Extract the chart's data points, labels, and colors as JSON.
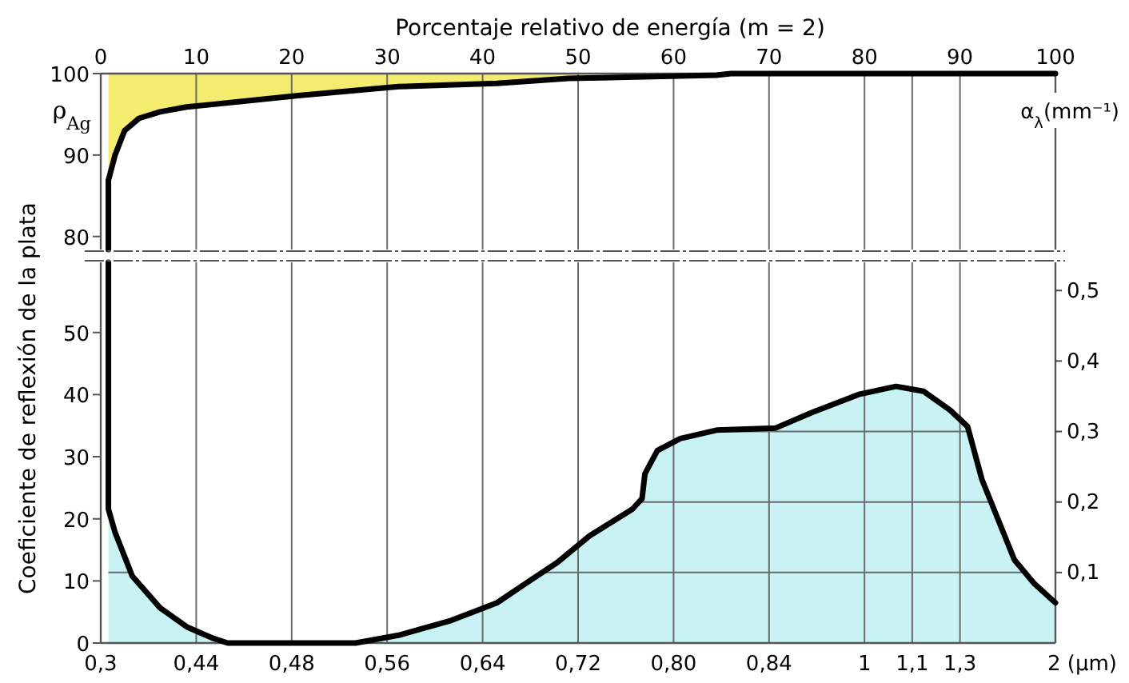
{
  "chart_data": [
    {
      "type": "line",
      "xlabel": "Porcentaje relativo de energía (m = 2)",
      "ylabel": "ρ$_{Ag}$",
      "xlim": [
        0,
        100
      ],
      "xticks": [
        0,
        10,
        20,
        30,
        40,
        50,
        60,
        70,
        80,
        {
          "value": 85,
          "label": null
        },
        90,
        100
      ],
      "ylim": [
        78.4,
        100
      ],
      "yticks": [
        80,
        90,
        100
      ],
      "grid": "x",
      "colors": [
        "#f3ec6e"
      ],
      "series": [
        {
          "color": "#000000",
          "x": [
            0.8,
            0.8,
            1.5,
            2.5,
            4,
            6.2,
            9,
            20.7,
            31.2,
            41.5,
            49,
            64.5,
            66,
            100
          ],
          "values": [
            78.4,
            86.9,
            90,
            93,
            94.5,
            95.3,
            95.9,
            97.3,
            98.4,
            98.8,
            99.4,
            99.8,
            100,
            100
          ],
          "lower": [
            78.4,
            86.9,
            90,
            93,
            94.5,
            95.3,
            95.9,
            97.3,
            98.4,
            98.8,
            99.4,
            99.8,
            100,
            100
          ],
          "upper": [
            100,
            100,
            100,
            100,
            100,
            100,
            100,
            100,
            100,
            100,
            100,
            100,
            100,
            100
          ]
        }
      ]
    },
    {
      "type": "line",
      "ylabel": "Coeficiente de reflexión de la plata",
      "y2label": "α$_{λ}$(mm⁻¹)",
      "xlim": [
        0,
        100
      ],
      "tick_labels": "y",
      "xticks": [
        {
          "value": 0,
          "label": null
        },
        {
          "value": 10,
          "label": null
        },
        {
          "value": 20,
          "label": null
        },
        {
          "value": 30,
          "label": null
        },
        {
          "value": 40,
          "label": null
        },
        {
          "value": 50,
          "label": null
        },
        {
          "value": 60,
          "label": null
        },
        {
          "value": 70,
          "label": null
        },
        {
          "value": 80,
          "label": null
        },
        {
          "value": 85,
          "label": null
        },
        {
          "value": 90,
          "label": null
        },
        {
          "value": 100,
          "label": null
        }
      ],
      "annotations": [
        {
          "text": "0,3",
          "x": 0,
          "y": 0
        },
        {
          "text": "0,44",
          "x": 10,
          "y": 0
        },
        {
          "text": "0,48",
          "x": 20,
          "y": 0
        },
        {
          "text": "0,56",
          "x": 30,
          "y": 0
        },
        {
          "text": "0,64",
          "x": 40,
          "y": 0
        },
        {
          "text": "0,72",
          "x": 50,
          "y": 0
        },
        {
          "text": "0,80",
          "x": 60,
          "y": 0
        },
        {
          "text": "0,84",
          "x": 70,
          "y": 0
        },
        {
          "text": "1",
          "x": 80,
          "y": 0
        },
        {
          "text": "1,1",
          "x": 85,
          "y": 0
        },
        {
          "text": "1,3",
          "x": 90,
          "y": 0
        },
        {
          "text": "2 (µm)",
          "x": 100,
          "y": 0
        }
      ],
      "ylim": [
        0,
        61.3
      ],
      "yticks": [
        0,
        10,
        20,
        30,
        40,
        50
      ],
      "y2lim": [
        0,
        0.54
      ],
      "y2ticks": [
        {
          "value": 0.1,
          "label": "0,1"
        },
        {
          "value": 0.2,
          "label": "0,2"
        },
        {
          "value": 0.3,
          "label": "0,3"
        },
        {
          "value": 0.4,
          "label": "0,4"
        },
        {
          "value": 0.5,
          "label": "0,5"
        }
      ],
      "grid": true,
      "colors": [
        "#c8f2f3"
      ],
      "series": [
        {
          "axis": "y2",
          "color": "#000000",
          "x": [
            0.8,
            0.8,
            1.5,
            3.3,
            6.2,
            9,
            11.7,
            13.3,
            26.7,
            31.2,
            36.7,
            41.5,
            45,
            47.8,
            51.2,
            55.7,
            56.7,
            57,
            58.3,
            60.7,
            64.5,
            70.7,
            74.5,
            79.5,
            83.3,
            86.2,
            89,
            90.8,
            92.3,
            95.7,
            97.8,
            100
          ],
          "values": [
            0.54,
            0.19,
            0.157,
            0.095,
            0.05,
            0.023,
            0.007,
            0,
            0,
            0.011,
            0.032,
            0.057,
            0.089,
            0.114,
            0.152,
            0.19,
            0.205,
            0.24,
            0.273,
            0.29,
            0.302,
            0.305,
            0.327,
            0.353,
            0.364,
            0.357,
            0.33,
            0.307,
            0.232,
            0.118,
            0.084,
            0.057
          ],
          "lower": [
            0,
            0,
            0,
            0,
            0,
            0,
            0,
            0,
            0,
            0,
            0,
            0,
            0,
            0,
            0,
            0,
            0,
            0,
            0,
            0,
            0,
            0,
            0,
            0,
            0,
            0,
            0,
            0,
            0,
            0,
            0,
            0
          ],
          "upper": [
            0.54,
            0.19,
            0.157,
            0.095,
            0.05,
            0.023,
            0.007,
            0,
            0,
            0.011,
            0.032,
            0.057,
            0.089,
            0.114,
            0.152,
            0.19,
            0.205,
            0.24,
            0.273,
            0.29,
            0.302,
            0.305,
            0.327,
            0.353,
            0.364,
            0.357,
            0.33,
            0.307,
            0.232,
            0.118,
            0.084,
            0.057
          ]
        }
      ]
    }
  ]
}
